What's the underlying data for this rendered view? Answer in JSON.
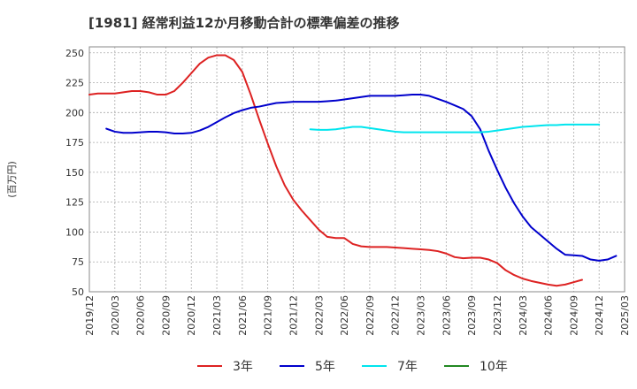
{
  "chart_data": {
    "type": "line",
    "title": "[1981]  経常利益12か月移動合計の標準偏差の推移",
    "ylabel": "(百万円)",
    "xlabel": "",
    "ylim": [
      50,
      255
    ],
    "yticks": [
      50,
      75,
      100,
      125,
      150,
      175,
      200,
      225,
      250
    ],
    "x_tick_labels": [
      "2019/12",
      "2020/03",
      "2020/06",
      "2020/09",
      "2020/12",
      "2021/03",
      "2021/06",
      "2021/09",
      "2021/12",
      "2022/03",
      "2022/06",
      "2022/09",
      "2022/12",
      "2023/03",
      "2023/06",
      "2023/09",
      "2023/12",
      "2024/03",
      "2024/06",
      "2024/09",
      "2024/12",
      "2025/03"
    ],
    "grid": true,
    "legend_position": "bottom",
    "series": [
      {
        "name": "3年",
        "color": "#dd2222",
        "start_index": 0,
        "values": [
          215,
          216,
          216,
          216,
          217,
          218,
          218,
          217,
          215,
          215,
          218,
          225,
          233,
          241,
          246,
          248,
          248,
          244,
          234,
          215,
          194,
          174,
          155,
          139,
          127,
          118,
          110,
          102,
          96,
          95,
          95,
          90,
          88,
          87.5,
          87.5,
          87.5,
          87,
          86.5,
          86,
          85.5,
          85,
          84,
          82,
          79,
          78,
          78.5,
          78.5,
          77,
          74,
          68,
          64,
          61,
          59,
          57.5,
          56,
          55,
          56,
          58,
          60
        ]
      },
      {
        "name": "5年",
        "color": "#0000cc",
        "start_index": 2,
        "values": [
          186.5,
          184,
          183,
          183,
          183.5,
          184,
          184,
          183.5,
          182.5,
          182.5,
          183,
          185,
          188,
          192,
          196,
          199.5,
          202,
          204,
          205,
          206.5,
          208,
          208.5,
          209,
          209,
          209,
          209,
          209.5,
          210,
          211,
          212,
          213,
          214,
          214,
          214,
          214,
          214.5,
          215,
          215,
          214,
          211.5,
          209,
          206,
          203,
          197,
          186,
          168,
          152,
          137,
          124,
          113,
          104,
          98,
          92,
          86,
          81,
          80.5,
          80,
          77,
          76,
          77,
          80
        ]
      },
      {
        "name": "7年",
        "color": "#00e5ee",
        "start_index": 26,
        "values": [
          186,
          185.5,
          185.5,
          186,
          187,
          188,
          188,
          187,
          186,
          185,
          184,
          183.5,
          183.5,
          183.5,
          183.5,
          183.5,
          183.5,
          183.5,
          183.5,
          183.5,
          183.5,
          184,
          185,
          186,
          187,
          188,
          188.5,
          189,
          189.5,
          189.5,
          190,
          190,
          190,
          190,
          190
        ]
      },
      {
        "name": "10年",
        "color": "#228822",
        "start_index": 0,
        "values": []
      }
    ]
  }
}
